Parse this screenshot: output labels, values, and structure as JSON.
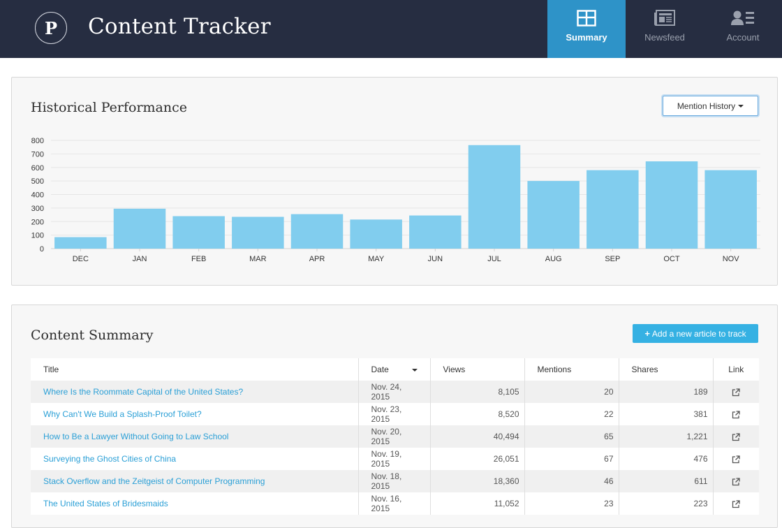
{
  "header": {
    "logo_letter": "P",
    "title": "Content Tracker",
    "nav": [
      {
        "label": "Summary",
        "icon": "summary-icon",
        "active": true
      },
      {
        "label": "Newsfeed",
        "icon": "newsfeed-icon",
        "active": false
      },
      {
        "label": "Account",
        "icon": "account-icon",
        "active": false
      }
    ]
  },
  "performance": {
    "title": "Historical Performance",
    "dropdown_label": "Mention History"
  },
  "chart_data": {
    "type": "bar",
    "categories": [
      "DEC",
      "JAN",
      "FEB",
      "MAR",
      "APR",
      "MAY",
      "JUN",
      "JUL",
      "AUG",
      "SEP",
      "OCT",
      "NOV"
    ],
    "values": [
      85,
      295,
      240,
      235,
      255,
      215,
      245,
      765,
      500,
      580,
      645,
      580
    ],
    "ylim": [
      0,
      800
    ],
    "yticks": [
      "0",
      "100",
      "200",
      "300",
      "400",
      "500",
      "600",
      "700",
      "800"
    ],
    "grid": true,
    "bar_color": "#81cdee"
  },
  "summary": {
    "title": "Content Summary",
    "add_button": "Add a new article to track",
    "columns": [
      "Title",
      "Date",
      "Views",
      "Mentions",
      "Shares",
      "Link"
    ],
    "rows": [
      {
        "title": "Where Is the Roommate Capital of the United States?",
        "date": "Nov. 24, 2015",
        "views": "8,105",
        "mentions": "20",
        "shares": "189"
      },
      {
        "title": "Why Can't We Build a Splash-Proof Toilet?",
        "date": "Nov. 23, 2015",
        "views": "8,520",
        "mentions": "22",
        "shares": "381"
      },
      {
        "title": "How to Be a Lawyer Without Going to Law School",
        "date": "Nov. 20, 2015",
        "views": "40,494",
        "mentions": "65",
        "shares": "1,221"
      },
      {
        "title": "Surveying the Ghost Cities of China",
        "date": "Nov. 19, 2015",
        "views": "26,051",
        "mentions": "67",
        "shares": "476"
      },
      {
        "title": "Stack Overflow and the Zeitgeist of Computer Programming",
        "date": "Nov. 18, 2015",
        "views": "18,360",
        "mentions": "46",
        "shares": "611"
      },
      {
        "title": "The United States of Bridesmaids",
        "date": "Nov. 16, 2015",
        "views": "11,052",
        "mentions": "23",
        "shares": "223"
      }
    ]
  },
  "colors": {
    "header_bg": "#262d41",
    "nav_active": "#2e93c8",
    "link": "#2a9fd6",
    "button": "#35b1e3"
  }
}
